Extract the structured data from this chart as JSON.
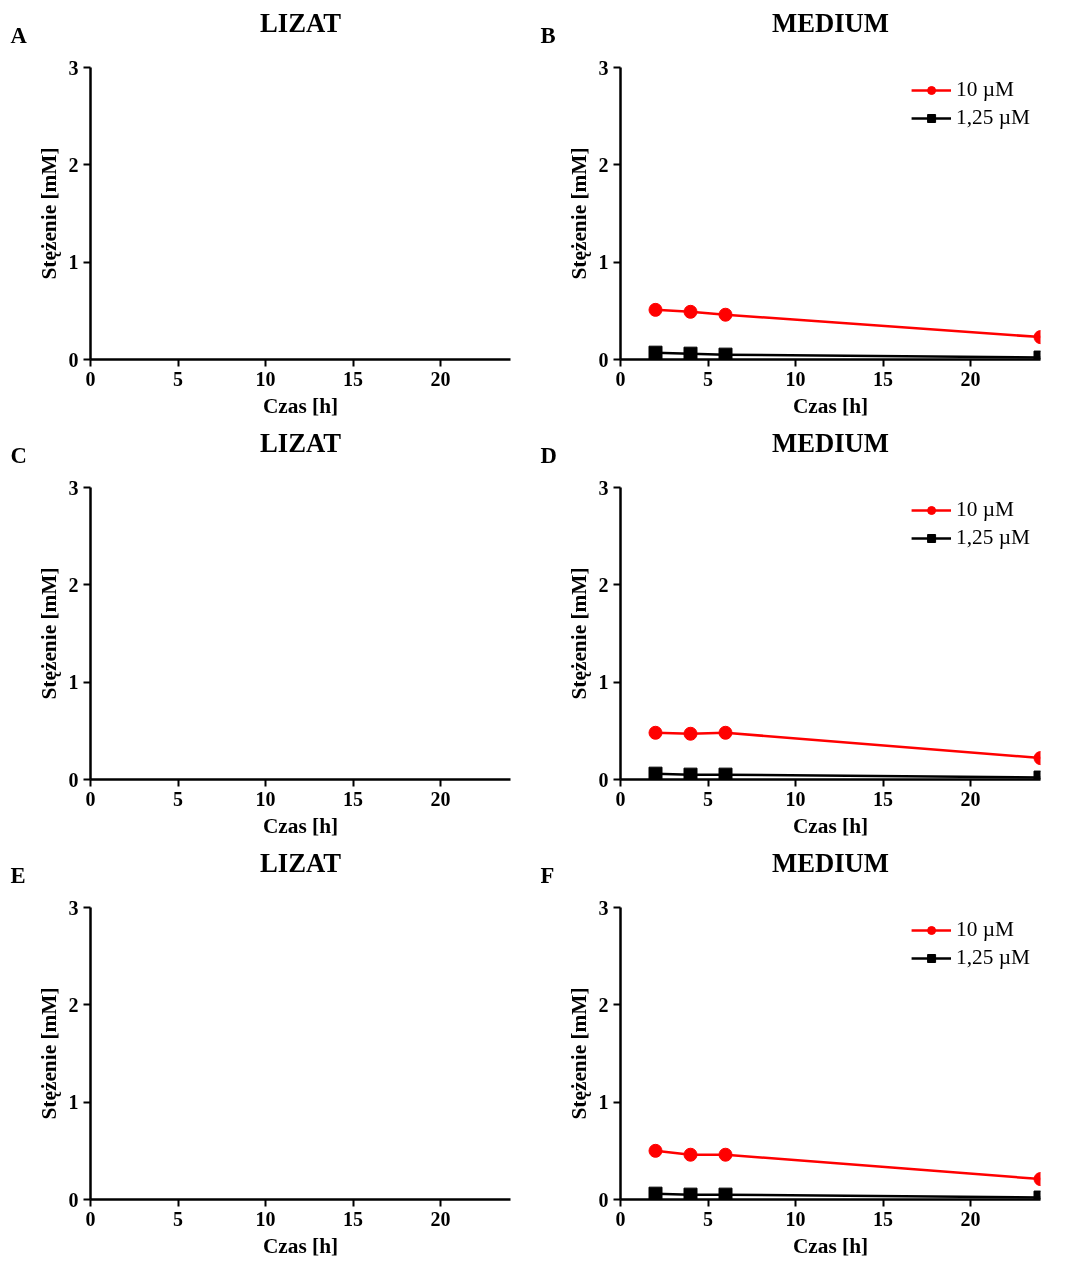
{
  "chart_data": [
    {
      "type": "line",
      "title": "LIZAT",
      "annotations": [
        "A"
      ],
      "xlabel": "Czas [h]",
      "ylabel": "Stężenie [mM]",
      "xlim": [
        0,
        24
      ],
      "ylim": [
        0,
        3
      ],
      "xticks": [
        0,
        5,
        10,
        15,
        20
      ],
      "yticks": [
        0,
        1,
        2,
        3
      ],
      "grid": false,
      "legend": false
    },
    {
      "type": "line",
      "title": "MEDIUM",
      "annotations": [
        "B"
      ],
      "xlabel": "Czas [h]",
      "ylabel": "Stężenie [mM]",
      "xlim": [
        0,
        24
      ],
      "ylim": [
        0,
        3
      ],
      "xticks": [
        0,
        5,
        10,
        15,
        20
      ],
      "yticks": [
        0,
        1,
        2,
        3
      ],
      "grid": false,
      "legend": "top right",
      "x": [
        2,
        4,
        6,
        24
      ],
      "series": [
        {
          "name": "10 µM",
          "color": "#ff0000",
          "marker": "circle",
          "values": [
            0.51,
            0.49,
            0.46,
            0.23
          ]
        },
        {
          "name": "1,25 µM",
          "color": "#000000",
          "marker": "square",
          "values": [
            0.07,
            0.06,
            0.05,
            0.02
          ]
        }
      ]
    },
    {
      "type": "line",
      "title": "LIZAT",
      "annotations": [
        "C"
      ],
      "xlabel": "Czas [h]",
      "ylabel": "Stężenie [mM]",
      "xlim": [
        0,
        24
      ],
      "ylim": [
        0,
        3
      ],
      "xticks": [
        0,
        5,
        10,
        15,
        20
      ],
      "yticks": [
        0,
        1,
        2,
        3
      ],
      "grid": false,
      "legend": false
    },
    {
      "type": "line",
      "title": "MEDIUM",
      "annotations": [
        "D"
      ],
      "xlabel": "Czas [h]",
      "ylabel": "Stężenie [mM]",
      "xlim": [
        0,
        24
      ],
      "ylim": [
        0,
        3
      ],
      "xticks": [
        0,
        5,
        10,
        15,
        20
      ],
      "yticks": [
        0,
        1,
        2,
        3
      ],
      "grid": false,
      "legend": "top right",
      "x": [
        2,
        4,
        6,
        24
      ],
      "series": [
        {
          "name": "10 µM",
          "color": "#ff0000",
          "marker": "circle",
          "values": [
            0.48,
            0.47,
            0.48,
            0.22
          ]
        },
        {
          "name": "1,25 µM",
          "color": "#000000",
          "marker": "square",
          "values": [
            0.06,
            0.05,
            0.05,
            0.02
          ]
        }
      ]
    },
    {
      "type": "line",
      "title": "LIZAT",
      "annotations": [
        "E"
      ],
      "xlabel": "Czas [h]",
      "ylabel": "Stężenie [mM]",
      "xlim": [
        0,
        24
      ],
      "ylim": [
        0,
        3
      ],
      "xticks": [
        0,
        5,
        10,
        15,
        20
      ],
      "yticks": [
        0,
        1,
        2,
        3
      ],
      "grid": false,
      "legend": false
    },
    {
      "type": "line",
      "title": "MEDIUM",
      "annotations": [
        "F"
      ],
      "xlabel": "Czas [h]",
      "ylabel": "Stężenie [mM]",
      "xlim": [
        0,
        24
      ],
      "ylim": [
        0,
        3
      ],
      "xticks": [
        0,
        5,
        10,
        15,
        20
      ],
      "yticks": [
        0,
        1,
        2,
        3
      ],
      "grid": false,
      "legend": "top right",
      "x": [
        2,
        4,
        6,
        24
      ],
      "series": [
        {
          "name": "10 µM",
          "color": "#ff0000",
          "marker": "circle",
          "values": [
            0.5,
            0.46,
            0.46,
            0.21
          ]
        },
        {
          "name": "1,25 µM",
          "color": "#000000",
          "marker": "square",
          "values": [
            0.06,
            0.05,
            0.05,
            0.02
          ]
        }
      ]
    }
  ]
}
